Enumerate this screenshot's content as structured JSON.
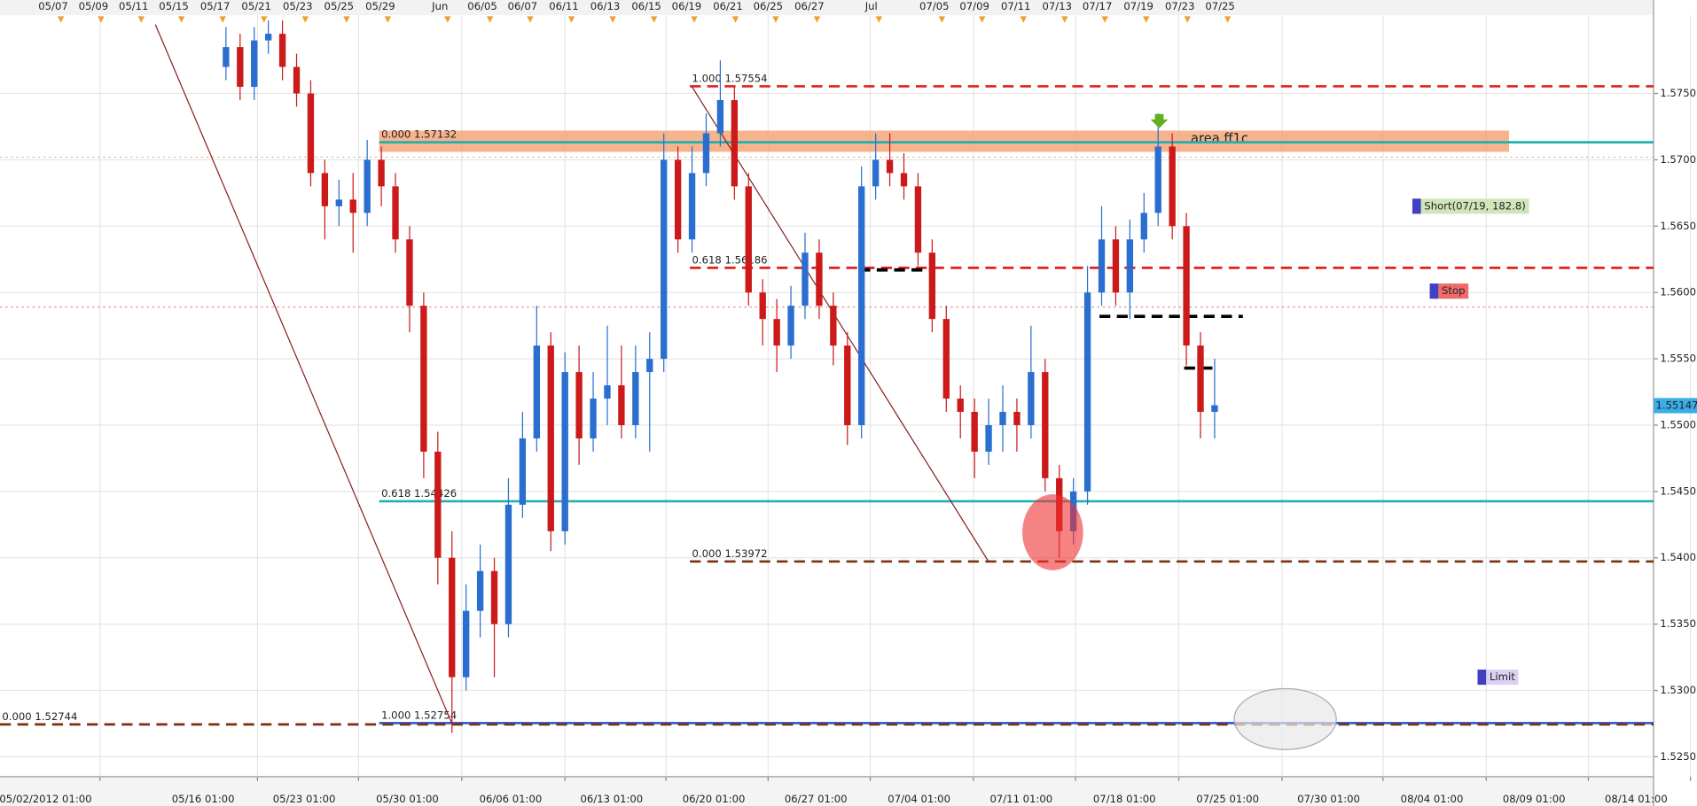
{
  "chart_data": {
    "type": "candlestick",
    "ylim": [
      1.5235,
      1.5809
    ],
    "yticks": [
      {
        "value": 1.525,
        "label": "1.5250"
      },
      {
        "value": 1.53,
        "label": "1.5300"
      },
      {
        "value": 1.535,
        "label": "1.5350"
      },
      {
        "value": 1.54,
        "label": "1.5400"
      },
      {
        "value": 1.545,
        "label": "1.5450"
      },
      {
        "value": 1.55,
        "label": "1.5500"
      },
      {
        "value": 1.555,
        "label": "1.5550"
      },
      {
        "value": 1.56,
        "label": "1.5600"
      },
      {
        "value": 1.565,
        "label": "1.5650"
      },
      {
        "value": 1.57,
        "label": "1.5700"
      },
      {
        "value": 1.575,
        "label": "1.5750"
      }
    ],
    "grid": true,
    "up_color": "#2a6fd0",
    "down_color": "#cc1a1a",
    "x_labels_top": [
      "05/07",
      "05/09",
      "05/11",
      "05/15",
      "05/17",
      "05/21",
      "05/23",
      "05/25",
      "05/29",
      "Jun",
      "06/05",
      "06/07",
      "06/11",
      "06/13",
      "06/15",
      "06/19",
      "06/21",
      "06/25",
      "06/27",
      "Jul",
      "07/05",
      "07/09",
      "07/11",
      "07/13",
      "07/17",
      "07/19",
      "07/23",
      "07/25"
    ],
    "x_labels_bottom": [
      "05/02/2012 01:00",
      "05/16 01:00",
      "05/23 01:00",
      "05/30 01:00",
      "06/06 01:00",
      "06/13 01:00",
      "06/20 01:00",
      "06/27 01:00",
      "07/04 01:00",
      "07/11 01:00",
      "07/18 01:00",
      "07/25 01:00",
      "07/30 01:00",
      "08/04 01:00",
      "08/09 01:00",
      "08/14 01:00"
    ],
    "candles": {
      "open": [
        1.577,
        1.5785,
        1.5755,
        1.579,
        1.5795,
        1.577,
        1.575,
        1.569,
        1.5665,
        1.567,
        1.566,
        1.57,
        1.568,
        1.564,
        1.559,
        1.548,
        1.54,
        1.531,
        1.536,
        1.539,
        1.535,
        1.544,
        1.549,
        1.556,
        1.542,
        1.554,
        1.549,
        1.552,
        1.553,
        1.55,
        1.554,
        1.555,
        1.57,
        1.564,
        1.569,
        1.572,
        1.5745,
        1.568,
        1.56,
        1.558,
        1.556,
        1.559,
        1.563,
        1.559,
        1.556,
        1.55,
        1.568,
        1.57,
        1.569,
        1.568,
        1.563,
        1.558,
        1.552,
        1.551,
        1.548,
        1.55,
        1.551,
        1.55,
        1.554,
        1.546,
        1.542,
        1.545,
        1.56,
        1.564,
        1.56,
        1.564,
        1.566,
        1.571,
        1.565,
        1.556,
        1.551
      ],
      "high": [
        1.58,
        1.5795,
        1.58,
        1.5805,
        1.5805,
        1.578,
        1.576,
        1.57,
        1.5685,
        1.569,
        1.5715,
        1.571,
        1.569,
        1.565,
        1.56,
        1.5495,
        1.542,
        1.538,
        1.541,
        1.54,
        1.546,
        1.551,
        1.559,
        1.557,
        1.5555,
        1.556,
        1.554,
        1.5575,
        1.556,
        1.556,
        1.557,
        1.572,
        1.571,
        1.571,
        1.5735,
        1.5775,
        1.5755,
        1.569,
        1.561,
        1.5595,
        1.5605,
        1.5645,
        1.564,
        1.56,
        1.557,
        1.5695,
        1.572,
        1.572,
        1.5705,
        1.569,
        1.564,
        1.559,
        1.553,
        1.552,
        1.552,
        1.553,
        1.552,
        1.5575,
        1.555,
        1.547,
        1.546,
        1.562,
        1.5665,
        1.565,
        1.5655,
        1.5675,
        1.5735,
        1.572,
        1.566,
        1.557,
        1.555
      ],
      "low": [
        1.576,
        1.5745,
        1.5745,
        1.578,
        1.576,
        1.574,
        1.568,
        1.564,
        1.565,
        1.563,
        1.565,
        1.5665,
        1.563,
        1.557,
        1.546,
        1.538,
        1.5268,
        1.53,
        1.534,
        1.531,
        1.534,
        1.543,
        1.548,
        1.5405,
        1.541,
        1.547,
        1.548,
        1.55,
        1.549,
        1.549,
        1.548,
        1.554,
        1.563,
        1.563,
        1.568,
        1.571,
        1.567,
        1.559,
        1.556,
        1.554,
        1.555,
        1.558,
        1.558,
        1.5545,
        1.5485,
        1.549,
        1.567,
        1.568,
        1.567,
        1.562,
        1.557,
        1.551,
        1.549,
        1.546,
        1.547,
        1.548,
        1.548,
        1.549,
        1.545,
        1.54,
        1.541,
        1.544,
        1.559,
        1.559,
        1.558,
        1.563,
        1.565,
        1.564,
        1.5545,
        1.549,
        1.549
      ],
      "close": [
        1.5785,
        1.5755,
        1.579,
        1.5795,
        1.577,
        1.575,
        1.569,
        1.5665,
        1.567,
        1.566,
        1.57,
        1.568,
        1.564,
        1.559,
        1.548,
        1.54,
        1.531,
        1.536,
        1.539,
        1.535,
        1.544,
        1.549,
        1.556,
        1.542,
        1.554,
        1.549,
        1.552,
        1.553,
        1.55,
        1.554,
        1.555,
        1.57,
        1.564,
        1.569,
        1.572,
        1.5745,
        1.568,
        1.56,
        1.558,
        1.556,
        1.559,
        1.563,
        1.559,
        1.556,
        1.55,
        1.568,
        1.57,
        1.569,
        1.568,
        1.563,
        1.558,
        1.552,
        1.551,
        1.548,
        1.55,
        1.551,
        1.55,
        1.554,
        1.546,
        1.542,
        1.545,
        1.56,
        1.564,
        1.56,
        1.564,
        1.566,
        1.571,
        1.565,
        1.556,
        1.551,
        1.5515
      ]
    },
    "band": {
      "label": "area ff1c",
      "low": 1.5706,
      "high": 1.5722,
      "start": 11,
      "end": 91,
      "color": "#f4a070"
    },
    "levels": [
      {
        "label": "1.000 1.57554",
        "value": 1.57554,
        "color": "#e02020",
        "style": "dashed",
        "start": 33
      },
      {
        "label": "0.000 1.57132",
        "value": 1.57132,
        "color": "#20b0b0",
        "style": "solid",
        "start": 11
      },
      {
        "label": "0.618 1.56186",
        "value": 1.56186,
        "color": "#e02020",
        "style": "dashed",
        "start": 33
      },
      {
        "label": "0.618 1.54426",
        "value": 1.54426,
        "color": "#20b0b0",
        "style": "solid",
        "start": 11
      },
      {
        "label": "0.000 1.53972",
        "value": 1.53972,
        "color": "#7a3010",
        "style": "dashed",
        "start": 33
      },
      {
        "label": "1.000 1.52754",
        "value": 1.52754,
        "color": "#3060e0",
        "style": "solid",
        "start": 11
      },
      {
        "label": "0.000 1.52744",
        "value": 1.52744,
        "color": "#7a3010",
        "style": "dashed"
      },
      {
        "value": 1.5702,
        "color": "#d8c090",
        "style": "dotted"
      },
      {
        "value": 1.5589,
        "color": "#e08080",
        "style": "dotted"
      },
      {
        "value": 1.5617,
        "color": "#000000",
        "style": "dashed",
        "start": 45,
        "end": 50
      },
      {
        "value": 1.5582,
        "color": "#000000",
        "style": "dashed",
        "start": 62,
        "end": 72
      },
      {
        "value": 1.5543,
        "color": "#000000",
        "style": "dashed",
        "start": 68,
        "end": 70
      }
    ],
    "trendlines": [
      {
        "start": [
          -5,
          1.5802
        ],
        "end": [
          16,
          1.5275
        ],
        "color": "#8b2020"
      },
      {
        "start": [
          33,
          1.5755
        ],
        "end": [
          54,
          1.5397
        ],
        "color": "#8b2020"
      }
    ],
    "orders": [
      {
        "label": "Short(07/19, 182.8)",
        "value": 1.5665,
        "color": "#cfe6b8",
        "text_color": "#6a9a50"
      },
      {
        "label": "Stop",
        "value": 1.5601,
        "color": "#f06a6a",
        "text_color": "#8a1010"
      },
      {
        "label": "Limit",
        "value": 1.531,
        "color": "#ddd0f4",
        "text_color": "#7050b0"
      }
    ],
    "last_price": 1.55147
  }
}
